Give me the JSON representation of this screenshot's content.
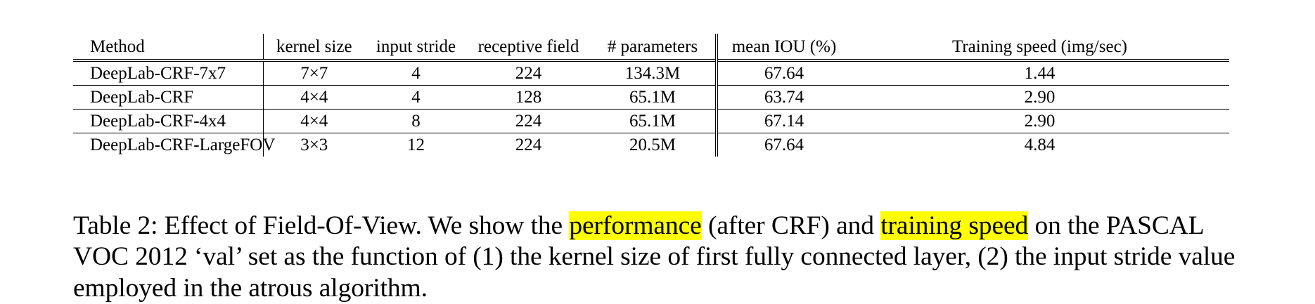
{
  "table": {
    "headers": [
      "Method",
      "kernel size",
      "input stride",
      "receptive field",
      "# parameters",
      "mean IOU (%)",
      "Training speed (img/sec)"
    ],
    "rows": [
      [
        "DeepLab-CRF-7x7",
        "7×7",
        "4",
        "224",
        "134.3M",
        "67.64",
        "1.44"
      ],
      [
        "DeepLab-CRF",
        "4×4",
        "4",
        "128",
        "65.1M",
        "63.74",
        "2.90"
      ],
      [
        "DeepLab-CRF-4x4",
        "4×4",
        "8",
        "224",
        "65.1M",
        "67.14",
        "2.90"
      ],
      [
        "DeepLab-CRF-LargeFOV",
        "3×3",
        "12",
        "224",
        "20.5M",
        "67.64",
        "4.84"
      ]
    ]
  },
  "caption": {
    "part1": "Table 2: Effect of Field-Of-View. We show the ",
    "highlight1": "performance",
    "part2": " (after CRF) and ",
    "highlight2": "training speed",
    "part3": " on the PASCAL VOC 2012 ‘val’ set as the function of (1) the kernel size of first fully connected layer, (2) the input stride value employed in the atrous algorithm."
  },
  "colors": {
    "highlight": "#ffff00",
    "text": "#000000"
  }
}
